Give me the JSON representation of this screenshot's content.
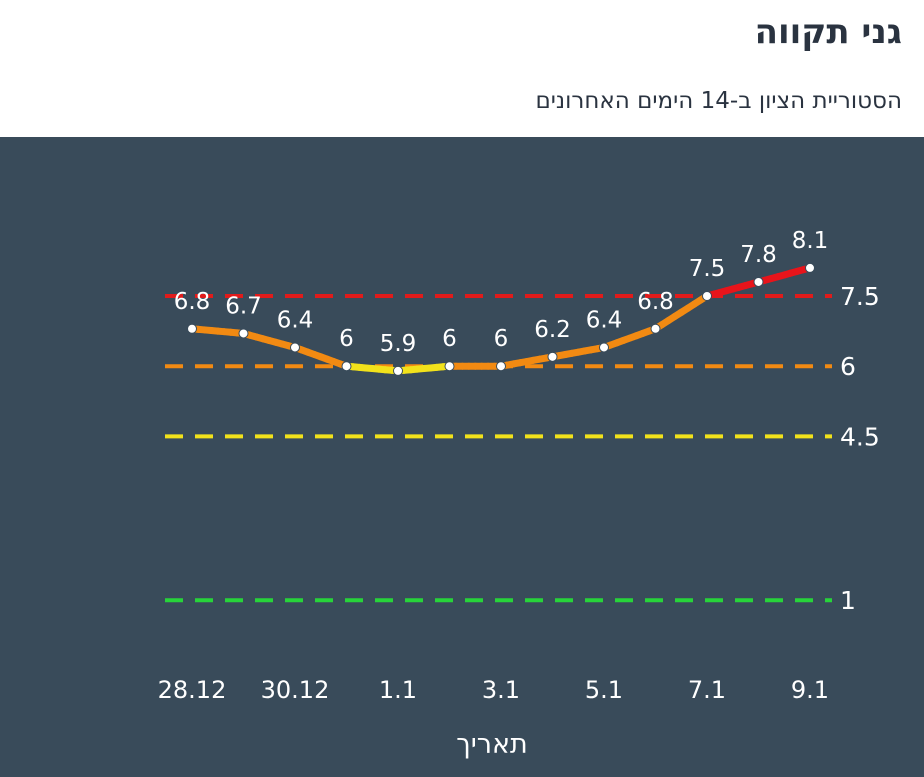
{
  "title": "גני תקווה",
  "subtitle": "הסטוריית הציון ב-14 הימים האחרונים",
  "chart_data": {
    "type": "line",
    "xlabel": "תאריך",
    "x": [
      "28.12",
      "29.12",
      "30.12",
      "31.12",
      "1.1",
      "2.1",
      "3.1",
      "4.1",
      "5.1",
      "6.1",
      "7.1",
      "8.1",
      "9.1"
    ],
    "x_tick_labels": [
      "28.12",
      "30.12",
      "1.1",
      "3.1",
      "5.1",
      "7.1",
      "9.1"
    ],
    "values": [
      6.8,
      6.7,
      6.4,
      6,
      5.9,
      6,
      6,
      6.2,
      6.4,
      6.8,
      7.5,
      7.8,
      8.1
    ],
    "value_labels": [
      "6.8",
      "6.7",
      "6.4",
      "6",
      "5.9",
      "6",
      "6",
      "6.2",
      "6.4",
      "6.8",
      "7.5",
      "7.8",
      "8.1"
    ],
    "thresholds": [
      {
        "value": 7.5,
        "label": "7.5",
        "color": "#e11b1b"
      },
      {
        "value": 6,
        "label": "6",
        "color": "#f28a12"
      },
      {
        "value": 4.5,
        "label": "4.5",
        "color": "#f2e21b"
      },
      {
        "value": 1,
        "label": "1",
        "color": "#27d43a"
      }
    ],
    "line_colors": {
      "red": "#e8141b",
      "orange": "#f28a12",
      "yellow": "#f2e21b",
      "green": "#27d43a"
    },
    "background": "#394b5a",
    "grid": false
  }
}
